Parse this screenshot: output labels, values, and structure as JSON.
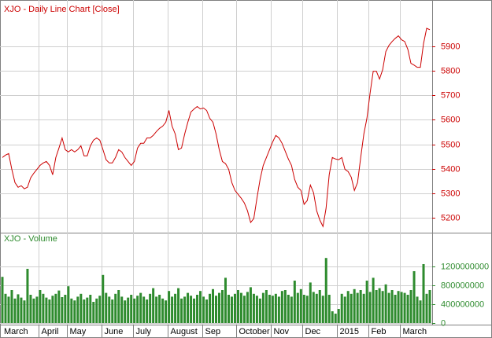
{
  "chart_data": [
    {
      "type": "line",
      "title": "XJO - Daily Line Chart [Close]",
      "color": "#cc0000",
      "grid": true,
      "ylim": [
        5143,
        6085
      ],
      "yticks": [
        5200,
        5300,
        5400,
        5500,
        5600,
        5700,
        5800,
        5900
      ],
      "values": [
        5446,
        5456,
        5462,
        5398,
        5344,
        5325,
        5331,
        5319,
        5325,
        5363,
        5382,
        5398,
        5414,
        5424,
        5430,
        5414,
        5376,
        5446,
        5485,
        5526,
        5478,
        5469,
        5478,
        5469,
        5478,
        5494,
        5453,
        5453,
        5494,
        5517,
        5526,
        5517,
        5478,
        5437,
        5424,
        5424,
        5446,
        5478,
        5469,
        5446,
        5430,
        5414,
        5430,
        5485,
        5504,
        5504,
        5526,
        5526,
        5536,
        5552,
        5565,
        5574,
        5590,
        5638,
        5574,
        5542,
        5478,
        5485,
        5542,
        5590,
        5632,
        5644,
        5654,
        5644,
        5648,
        5638,
        5606,
        5590,
        5542,
        5478,
        5430,
        5421,
        5398,
        5344,
        5312,
        5296,
        5280,
        5261,
        5229,
        5181,
        5197,
        5280,
        5357,
        5414,
        5446,
        5478,
        5510,
        5536,
        5526,
        5504,
        5472,
        5440,
        5414,
        5357,
        5325,
        5312,
        5255,
        5271,
        5334,
        5303,
        5229,
        5191,
        5165,
        5239,
        5376,
        5446,
        5440,
        5437,
        5446,
        5398,
        5389,
        5366,
        5312,
        5344,
        5446,
        5542,
        5606,
        5708,
        5798,
        5798,
        5766,
        5804,
        5878,
        5903,
        5919,
        5932,
        5942,
        5926,
        5919,
        5887,
        5830,
        5823,
        5814,
        5814,
        5910,
        5973,
        5967
      ]
    },
    {
      "type": "bar",
      "title": "XJO - Volume",
      "color": "#2e8b2e",
      "grid": true,
      "ylim": [
        -33000000,
        1883000000
      ],
      "yticks": [
        0,
        400000000,
        800000000,
        1200000000
      ],
      "categories": [
        "March",
        null,
        null,
        null,
        null,
        null,
        null,
        null,
        null,
        null,
        null,
        null,
        "April",
        null,
        null,
        null,
        null,
        null,
        null,
        null,
        null,
        "May",
        null,
        null,
        null,
        null,
        null,
        null,
        null,
        null,
        null,
        null,
        "June",
        null,
        null,
        null,
        null,
        null,
        null,
        null,
        null,
        null,
        "July",
        null,
        null,
        null,
        null,
        null,
        null,
        null,
        null,
        null,
        null,
        "August",
        null,
        null,
        null,
        null,
        null,
        null,
        null,
        null,
        null,
        null,
        "Sep",
        null,
        null,
        null,
        null,
        null,
        null,
        null,
        null,
        null,
        null,
        "October",
        null,
        null,
        null,
        null,
        null,
        null,
        null,
        null,
        null,
        null,
        "Nov",
        null,
        null,
        null,
        null,
        null,
        null,
        null,
        null,
        null,
        "Dec",
        null,
        null,
        null,
        null,
        null,
        null,
        null,
        null,
        null,
        null,
        "2015",
        null,
        null,
        null,
        null,
        null,
        null,
        null,
        null,
        null,
        "Feb",
        null,
        null,
        null,
        null,
        null,
        null,
        null,
        null,
        null,
        "March",
        null,
        null,
        null,
        null,
        null,
        null,
        null,
        null,
        null
      ],
      "values": [
        980000000,
        620000000,
        560000000,
        700000000,
        520000000,
        610000000,
        540000000,
        480000000,
        1150000000,
        600000000,
        520000000,
        560000000,
        700000000,
        620000000,
        540000000,
        500000000,
        580000000,
        620000000,
        690000000,
        550000000,
        600000000,
        780000000,
        520000000,
        480000000,
        560000000,
        620000000,
        500000000,
        540000000,
        600000000,
        450000000,
        520000000,
        580000000,
        1020000000,
        640000000,
        560000000,
        500000000,
        620000000,
        700000000,
        560000000,
        480000000,
        540000000,
        600000000,
        520000000,
        580000000,
        640000000,
        560000000,
        500000000,
        620000000,
        740000000,
        560000000,
        600000000,
        520000000,
        480000000,
        680000000,
        560000000,
        620000000,
        740000000,
        520000000,
        560000000,
        640000000,
        580000000,
        520000000,
        600000000,
        680000000,
        560000000,
        500000000,
        620000000,
        720000000,
        580000000,
        640000000,
        700000000,
        960000000,
        600000000,
        560000000,
        620000000,
        700000000,
        640000000,
        580000000,
        660000000,
        760000000,
        620000000,
        580000000,
        520000000,
        640000000,
        700000000,
        600000000,
        580000000,
        620000000,
        560000000,
        680000000,
        700000000,
        600000000,
        560000000,
        900000000,
        640000000,
        720000000,
        600000000,
        580000000,
        860000000,
        660000000,
        620000000,
        700000000,
        580000000,
        1380000000,
        600000000,
        250000000,
        200000000,
        300000000,
        620000000,
        560000000,
        680000000,
        620000000,
        720000000,
        640000000,
        700000000,
        620000000,
        900000000,
        660000000,
        960000000,
        700000000,
        740000000,
        680000000,
        820000000,
        640000000,
        700000000,
        600000000,
        680000000,
        660000000,
        640000000,
        600000000,
        700000000,
        1100000000,
        560000000,
        480000000,
        1250000000,
        620000000,
        700000000
      ]
    }
  ]
}
